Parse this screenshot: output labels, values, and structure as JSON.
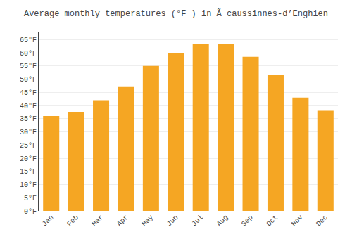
{
  "chart_data": {
    "type": "bar",
    "title": "Average monthly temperatures (°F ) in Ã caussinnes-d’Enghien",
    "categories": [
      "Jan",
      "Feb",
      "Mar",
      "Apr",
      "May",
      "Jun",
      "Jul",
      "Aug",
      "Sep",
      "Oct",
      "Nov",
      "Dec"
    ],
    "values": [
      36,
      37.5,
      42,
      47,
      55,
      60,
      63.5,
      63.5,
      58.5,
      51.5,
      43,
      38
    ],
    "color": "#F5A623",
    "ylim": [
      0,
      68
    ],
    "yticks": [
      {
        "value": 0,
        "label": "0°F"
      },
      {
        "value": 5,
        "label": "5°F"
      },
      {
        "value": 10,
        "label": "10°F"
      },
      {
        "value": 15,
        "label": "15°F"
      },
      {
        "value": 20,
        "label": "20°F"
      },
      {
        "value": 25,
        "label": "25°F"
      },
      {
        "value": 30,
        "label": "30°F"
      },
      {
        "value": 35,
        "label": "35°F"
      },
      {
        "value": 40,
        "label": "40°F"
      },
      {
        "value": 45,
        "label": "45°F"
      },
      {
        "value": 50,
        "label": "50°F"
      },
      {
        "value": 55,
        "label": "55°F"
      },
      {
        "value": 60,
        "label": "60°F"
      },
      {
        "value": 65,
        "label": "65°F"
      }
    ],
    "grid": true
  }
}
